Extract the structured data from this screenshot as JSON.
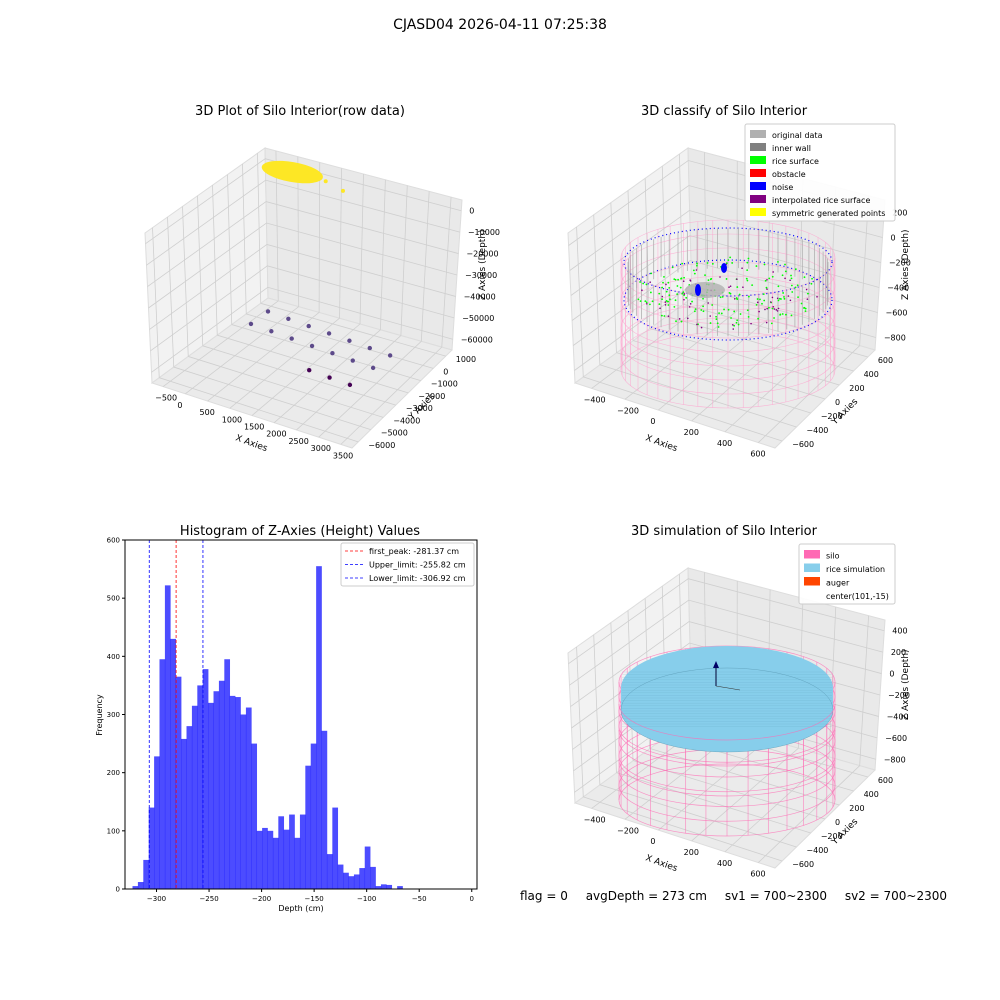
{
  "figure_title": "CJASD04 2026-04-11 07:25:38",
  "footer": {
    "flag": "flag = 0",
    "avg_depth": "avgDepth = 273 cm",
    "sv1": "sv1 = 700~2300",
    "sv2": "sv2 = 700~2300"
  },
  "chart_data": [
    {
      "type": "scatter",
      "title": "3D Plot of Silo Interior(row data)",
      "xlabel": "X Axies",
      "ylabel": "Y Axies",
      "zlabel": "Z Axies (Depth)",
      "x_ticks": [
        "−500",
        "0",
        "500",
        "1000",
        "1500",
        "2000",
        "2500",
        "3000",
        "3500"
      ],
      "y_ticks": [
        "1000",
        "0",
        "−1000",
        "−2000",
        "−3000",
        "−4000",
        "−5000",
        "−6000"
      ],
      "z_ticks": [
        "0",
        "−10000",
        "−20000",
        "−30000",
        "−40000",
        "−50000",
        "−60000"
      ],
      "xlim": [
        -600,
        3600
      ],
      "ylim": [
        -6300,
        1200
      ],
      "zlim": [
        -66000,
        2000
      ],
      "colors": {
        "high": "#fde725",
        "mid": "#5d4a8a",
        "low": "#440154"
      },
      "points_yellow": [
        [
          -300,
          800,
          0
        ],
        [
          500,
          600,
          0
        ],
        [
          1000,
          400,
          0
        ],
        [
          1500,
          100,
          0
        ]
      ],
      "points_purple": [
        [
          0,
          -500,
          -60000
        ],
        [
          500,
          -600,
          -60000
        ],
        [
          1000,
          -700,
          -60000
        ],
        [
          1500,
          -800,
          -60000
        ],
        [
          2000,
          -900,
          -60000
        ],
        [
          2500,
          -1000,
          -60000
        ],
        [
          3000,
          -1100,
          -60000
        ],
        [
          0,
          -1600,
          -60000
        ],
        [
          500,
          -1700,
          -60000
        ],
        [
          1000,
          -1800,
          -60000
        ],
        [
          1500,
          -1900,
          -60000
        ],
        [
          2000,
          -2000,
          -60000
        ],
        [
          2500,
          -2100,
          -60000
        ],
        [
          3000,
          -2200,
          -60000
        ],
        [
          2000,
          -3500,
          -60000
        ],
        [
          2500,
          -3600,
          -60000
        ],
        [
          3000,
          -3700,
          -60000
        ]
      ]
    },
    {
      "type": "scatter",
      "title": "3D classify of Silo Interior",
      "xlabel": "X Axies",
      "ylabel": "Y Axies",
      "zlabel": "Z Axies (Depth)",
      "x_ticks": [
        "−400",
        "−200",
        "0",
        "200",
        "400",
        "600"
      ],
      "y_ticks": [
        "600",
        "400",
        "200",
        "0",
        "−200",
        "−400",
        "−600"
      ],
      "z_ticks": [
        "200",
        "0",
        "−200",
        "−400",
        "−600",
        "−800"
      ],
      "legend_position": "top-right",
      "legend": [
        {
          "label": "original data",
          "color": "#b0b0b0"
        },
        {
          "label": "inner wall",
          "color": "#808080"
        },
        {
          "label": "rice surface",
          "color": "#00ff00"
        },
        {
          "label": "obstacle",
          "color": "#ff0000"
        },
        {
          "label": "noise",
          "color": "#0000ff"
        },
        {
          "label": "interpolated rice surface",
          "color": "#800080"
        },
        {
          "label": "symmetric generated points",
          "color": "#ffff00"
        }
      ]
    },
    {
      "type": "bar",
      "title": "Histogram of Z-Axies (Height) Values",
      "xlabel": "Depth (cm)",
      "ylabel": "Frequency",
      "xlim": [
        -330,
        5
      ],
      "ylim": [
        0,
        600
      ],
      "x_ticks": [
        -300,
        -250,
        -200,
        -150,
        -100,
        -50,
        0
      ],
      "y_ticks": [
        0,
        100,
        200,
        300,
        400,
        500,
        600
      ],
      "bin_width": 5.14,
      "bin_start": -328,
      "values": [
        0,
        5,
        12,
        50,
        140,
        228,
        395,
        522,
        430,
        365,
        258,
        280,
        315,
        350,
        378,
        320,
        340,
        358,
        395,
        332,
        330,
        300,
        312,
        250,
        100,
        105,
        100,
        88,
        125,
        102,
        128,
        88,
        128,
        212,
        250,
        555,
        272,
        60,
        140,
        42,
        28,
        22,
        25,
        36,
        73,
        38,
        5,
        8,
        7,
        0,
        5
      ],
      "bar_color": "#0000ff",
      "lines": [
        {
          "label": "first_peak: -281.37 cm",
          "x": -281.37,
          "color": "#ff0000"
        },
        {
          "label": "Upper_limit: -255.82 cm",
          "x": -255.82,
          "color": "#0000ff"
        },
        {
          "label": "Lower_limit: -306.92 cm",
          "x": -306.92,
          "color": "#0000ff"
        }
      ],
      "legend_position": "top-right"
    },
    {
      "type": "scatter",
      "title": "3D simulation of Silo Interior",
      "xlabel": "X Axies",
      "ylabel": "Y Axies",
      "zlabel": "Z Axies (Depth)",
      "x_ticks": [
        "−400",
        "−200",
        "0",
        "200",
        "400",
        "600"
      ],
      "y_ticks": [
        "600",
        "400",
        "200",
        "0",
        "−200",
        "−400",
        "−600"
      ],
      "z_ticks": [
        "400",
        "200",
        "0",
        "−200",
        "−400",
        "−600",
        "−800"
      ],
      "legend_position": "top-right",
      "legend": [
        {
          "label": "silo",
          "color": "#ff69b4"
        },
        {
          "label": "rice simulation",
          "color": "#87ceeb"
        },
        {
          "label": "auger",
          "color": "#ff4500"
        },
        {
          "label": "center(101,-15)",
          "color": ""
        }
      ]
    }
  ]
}
